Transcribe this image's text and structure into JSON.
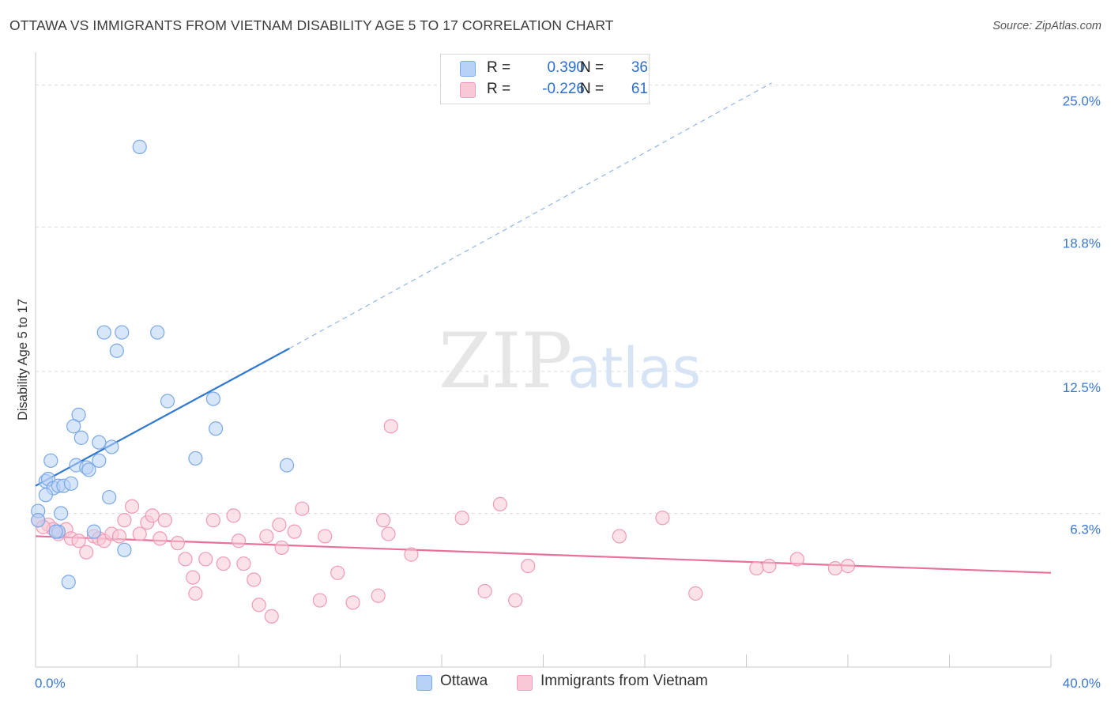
{
  "title": "OTTAWA VS IMMIGRANTS FROM VIETNAM DISABILITY AGE 5 TO 17 CORRELATION CHART",
  "source": "Source: ZipAtlas.com",
  "watermark": {
    "zip": "ZIP",
    "atlas": "atlas"
  },
  "legend": {
    "rows": [
      {
        "r_key": "R =",
        "r_value": "0.390",
        "n_key": "N =",
        "n_value": "36"
      },
      {
        "r_key": "R =",
        "r_value": "-0.226",
        "n_key": "N =",
        "n_value": "61"
      }
    ]
  },
  "colors": {
    "ottawa_fill": "#b8d2f5",
    "ottawa_stroke": "#7aa8e6",
    "ottawa_line": "#2f78d0",
    "vietnam_fill": "#f8c8d6",
    "vietnam_stroke": "#ef9bb6",
    "vietnam_line": "#e8709a",
    "axis_label": "#3a78d0",
    "grid": "#dddddd"
  },
  "chart_data": {
    "type": "scatter",
    "title": "OTTAWA VS IMMIGRANTS FROM VIETNAM DISABILITY AGE 5 TO 17 CORRELATION CHART",
    "xlabel": "",
    "ylabel": "Disability Age 5 to 17",
    "xlim": [
      0,
      40
    ],
    "ylim": [
      0,
      26.3
    ],
    "x_tick_labels": [
      "0.0%",
      "40.0%"
    ],
    "y_ticks": [
      6.3,
      12.5,
      18.8,
      25.0
    ],
    "y_tick_labels": [
      "6.3%",
      "12.5%",
      "18.8%",
      "25.0%"
    ],
    "grid": true,
    "legend_position": "top-center",
    "series": [
      {
        "name": "Ottawa",
        "R": 0.39,
        "N": 36,
        "trend": {
          "x": [
            0,
            10.0
          ],
          "y": [
            7.5,
            13.5
          ],
          "dashed_extension": {
            "x": [
              10.0,
              29.0
            ],
            "y": [
              13.5,
              25.1
            ]
          }
        },
        "points": [
          [
            4.1,
            22.3
          ],
          [
            2.7,
            14.2
          ],
          [
            3.4,
            14.2
          ],
          [
            4.8,
            14.2
          ],
          [
            3.2,
            13.4
          ],
          [
            5.2,
            11.2
          ],
          [
            7.0,
            11.3
          ],
          [
            1.7,
            10.6
          ],
          [
            1.5,
            10.1
          ],
          [
            7.1,
            10.0
          ],
          [
            1.8,
            9.6
          ],
          [
            2.5,
            9.4
          ],
          [
            3.0,
            9.2
          ],
          [
            0.6,
            8.6
          ],
          [
            2.5,
            8.6
          ],
          [
            1.6,
            8.4
          ],
          [
            2.0,
            8.3
          ],
          [
            2.1,
            8.2
          ],
          [
            6.3,
            8.7
          ],
          [
            9.9,
            8.4
          ],
          [
            0.4,
            7.7
          ],
          [
            0.5,
            7.8
          ],
          [
            0.7,
            7.4
          ],
          [
            0.9,
            7.5
          ],
          [
            1.1,
            7.5
          ],
          [
            1.4,
            7.6
          ],
          [
            0.4,
            7.1
          ],
          [
            2.9,
            7.0
          ],
          [
            0.1,
            6.4
          ],
          [
            1.0,
            6.3
          ],
          [
            0.1,
            6.0
          ],
          [
            0.9,
            5.5
          ],
          [
            2.3,
            5.5
          ],
          [
            3.5,
            4.7
          ],
          [
            1.3,
            3.3
          ],
          [
            0.8,
            5.5
          ]
        ]
      },
      {
        "name": "Immigrants from Vietnam",
        "R": -0.226,
        "N": 61,
        "trend": {
          "x": [
            0,
            40
          ],
          "y": [
            5.3,
            3.7
          ]
        },
        "points": [
          [
            0.1,
            6.0
          ],
          [
            0.5,
            5.8
          ],
          [
            0.7,
            5.6
          ],
          [
            0.9,
            5.4
          ],
          [
            1.2,
            5.6
          ],
          [
            1.4,
            5.2
          ],
          [
            1.7,
            5.1
          ],
          [
            2.0,
            4.6
          ],
          [
            2.3,
            5.3
          ],
          [
            2.5,
            5.2
          ],
          [
            2.7,
            5.1
          ],
          [
            3.0,
            5.4
          ],
          [
            3.3,
            5.3
          ],
          [
            3.5,
            6.0
          ],
          [
            3.8,
            6.6
          ],
          [
            4.1,
            5.4
          ],
          [
            4.4,
            5.9
          ],
          [
            4.6,
            6.2
          ],
          [
            4.9,
            5.2
          ],
          [
            5.1,
            6.0
          ],
          [
            5.6,
            5.0
          ],
          [
            5.9,
            4.3
          ],
          [
            6.2,
            3.5
          ],
          [
            6.3,
            2.8
          ],
          [
            6.7,
            4.3
          ],
          [
            7.0,
            6.0
          ],
          [
            7.4,
            4.1
          ],
          [
            7.8,
            6.2
          ],
          [
            8.0,
            5.1
          ],
          [
            8.2,
            4.1
          ],
          [
            8.6,
            3.4
          ],
          [
            8.8,
            2.3
          ],
          [
            9.1,
            5.3
          ],
          [
            9.3,
            1.8
          ],
          [
            9.6,
            5.8
          ],
          [
            9.7,
            4.8
          ],
          [
            10.2,
            5.5
          ],
          [
            10.5,
            6.5
          ],
          [
            11.2,
            2.5
          ],
          [
            11.4,
            5.3
          ],
          [
            11.9,
            3.7
          ],
          [
            12.5,
            2.4
          ],
          [
            13.5,
            2.7
          ],
          [
            13.7,
            6.0
          ],
          [
            13.9,
            5.4
          ],
          [
            14.0,
            10.1
          ],
          [
            14.8,
            4.5
          ],
          [
            16.8,
            6.1
          ],
          [
            17.7,
            2.9
          ],
          [
            18.3,
            6.7
          ],
          [
            18.9,
            2.5
          ],
          [
            19.4,
            4.0
          ],
          [
            23.0,
            5.3
          ],
          [
            24.7,
            6.1
          ],
          [
            26.0,
            2.8
          ],
          [
            28.4,
            3.9
          ],
          [
            28.9,
            4.0
          ],
          [
            30.0,
            4.3
          ],
          [
            31.5,
            3.9
          ],
          [
            32.0,
            4.0
          ],
          [
            0.3,
            5.7
          ]
        ]
      }
    ]
  },
  "bottom_legend": {
    "items": [
      {
        "label": "Ottawa"
      },
      {
        "label": "Immigrants from Vietnam"
      }
    ]
  }
}
